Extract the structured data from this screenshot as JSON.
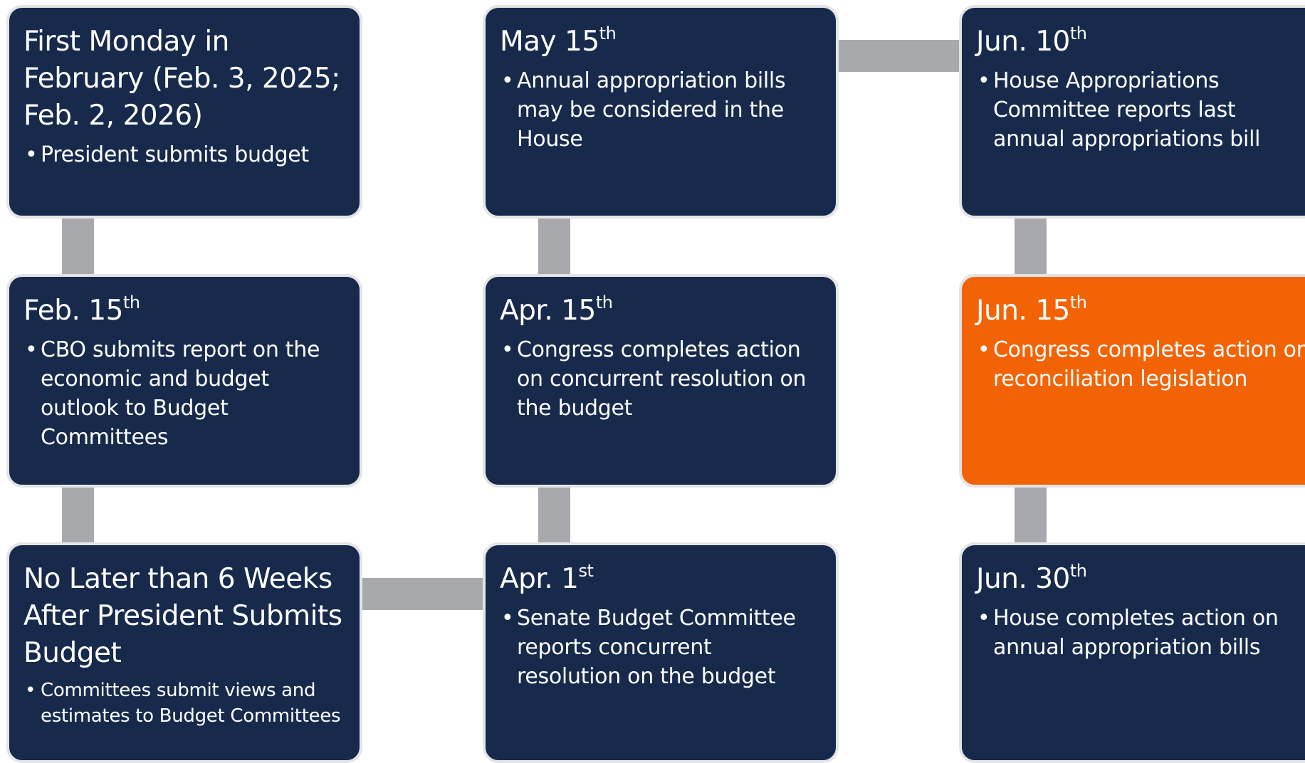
{
  "nodes": [
    {
      "title": "First Monday in February (Feb. 3, 2025; Feb. 2, 2026)",
      "bullet": "President submits budget"
    },
    {
      "title": "Feb. 15",
      "sup": "th",
      "bullet": "CBO submits report on the economic and budget outlook to Budget Committees"
    },
    {
      "title": "No Later than 6 Weeks After President Submits Budget",
      "bullet": "Committees submit views and estimates to Budget Committees"
    },
    {
      "title": "Apr. 1",
      "sup": "st",
      "bullet": "Senate Budget Committee reports concurrent resolution on the budget"
    },
    {
      "title": "Apr. 15",
      "sup": "th",
      "bullet": "Congress completes action on concurrent resolution on the budget"
    },
    {
      "title": "May 15",
      "sup": "th",
      "bullet": "Annual appropriation bills may be considered in the House"
    },
    {
      "title": "Jun. 10",
      "sup": "th",
      "bullet": "House Appropriations Committee reports last annual appropriations bill"
    },
    {
      "title": "Jun. 15",
      "sup": "th",
      "bullet": "Congress completes action on reconciliation legislation"
    },
    {
      "title": "Jun. 30",
      "sup": "th",
      "bullet": "House completes action on annual appropriation bills"
    }
  ]
}
